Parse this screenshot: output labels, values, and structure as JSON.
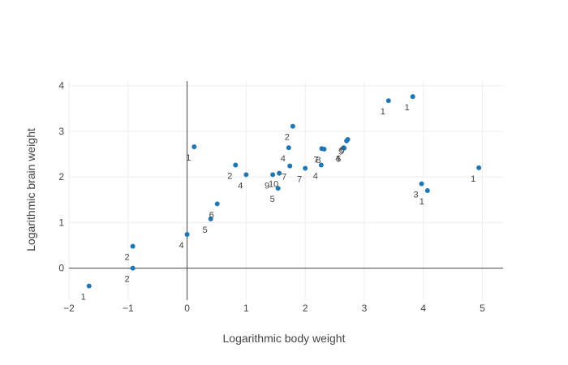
{
  "chart_data": {
    "type": "scatter",
    "xlabel": "Logarithmic body weight",
    "ylabel": "Logarithmic brain weight",
    "xlim": [
      -2,
      5.35
    ],
    "ylim": [
      -0.7,
      4.1
    ],
    "xticks": [
      -2,
      -1,
      0,
      1,
      2,
      3,
      4,
      5
    ],
    "yticks": [
      0,
      1,
      2,
      3,
      4
    ],
    "grid": true,
    "zero_lines": true,
    "marker_color": "#1f77b4",
    "points": [
      {
        "x": -1.66,
        "y": -0.39,
        "label": "1"
      },
      {
        "x": -0.92,
        "y": 0.48,
        "label": "2"
      },
      {
        "x": -0.92,
        "y": 0.0,
        "label": "2"
      },
      {
        "x": 0.0,
        "y": 0.74,
        "label": "4"
      },
      {
        "x": 0.12,
        "y": 2.66,
        "label": "1"
      },
      {
        "x": 0.4,
        "y": 1.08,
        "label": "5"
      },
      {
        "x": 0.51,
        "y": 1.41,
        "label": "6"
      },
      {
        "x": 0.82,
        "y": 2.26,
        "label": "2"
      },
      {
        "x": 1.0,
        "y": 2.05,
        "label": "4"
      },
      {
        "x": 1.45,
        "y": 2.05,
        "label": "9"
      },
      {
        "x": 1.54,
        "y": 1.75,
        "label": "5"
      },
      {
        "x": 1.56,
        "y": 2.08,
        "label": "10"
      },
      {
        "x": 1.72,
        "y": 2.64,
        "label": "4"
      },
      {
        "x": 1.74,
        "y": 2.24,
        "label": "7"
      },
      {
        "x": 1.79,
        "y": 3.11,
        "label": "2"
      },
      {
        "x": 2.0,
        "y": 2.19,
        "label": "7"
      },
      {
        "x": 2.27,
        "y": 2.26,
        "label": "4"
      },
      {
        "x": 2.28,
        "y": 2.62,
        "label": "7"
      },
      {
        "x": 2.32,
        "y": 2.61,
        "label": "8"
      },
      {
        "x": 2.65,
        "y": 2.64,
        "label": "4"
      },
      {
        "x": 2.66,
        "y": 2.63,
        "label": "5"
      },
      {
        "x": 2.7,
        "y": 2.79,
        "label": "5"
      },
      {
        "x": 2.72,
        "y": 2.82,
        "label": "5"
      },
      {
        "x": 3.41,
        "y": 3.67,
        "label": "1"
      },
      {
        "x": 3.82,
        "y": 3.76,
        "label": "1"
      },
      {
        "x": 3.97,
        "y": 1.85,
        "label": "3"
      },
      {
        "x": 4.07,
        "y": 1.7,
        "label": "1"
      },
      {
        "x": 4.94,
        "y": 2.2,
        "label": "1"
      }
    ]
  }
}
